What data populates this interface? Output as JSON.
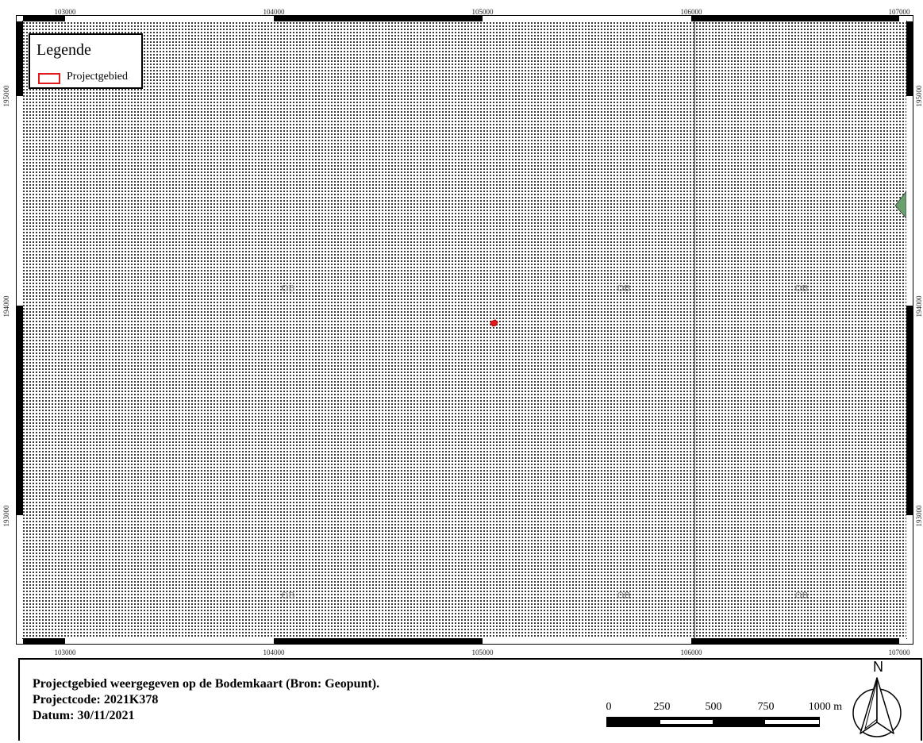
{
  "map": {
    "x_ticks": [
      "103000",
      "104000",
      "105000",
      "106000",
      "107000"
    ],
    "y_ticks": [
      "195000",
      "194000",
      "193000"
    ],
    "soil_labels": [
      "OB",
      "OB",
      "OB",
      "OB",
      "OB",
      "OB"
    ],
    "colors": {
      "dot_pattern": "#000000",
      "project_area": "#e31a1c",
      "green_polygon": "#6a9f6e",
      "frame": "#000000"
    }
  },
  "legend": {
    "title": "Legende",
    "items": [
      {
        "label": "Projectgebied",
        "color": "#e31a1c"
      }
    ]
  },
  "footer": {
    "line1": "Projectgebied weergegeven op de Bodemkaart (Bron: Geopunt).",
    "line2": "Projectcode: 2021K378",
    "line3": "Datum: 30/11/2021"
  },
  "scalebar": {
    "labels": [
      "0",
      "250",
      "500",
      "750",
      "1000 m"
    ]
  },
  "north_arrow": {
    "label": "N",
    "icon": "north-arrow-icon"
  }
}
